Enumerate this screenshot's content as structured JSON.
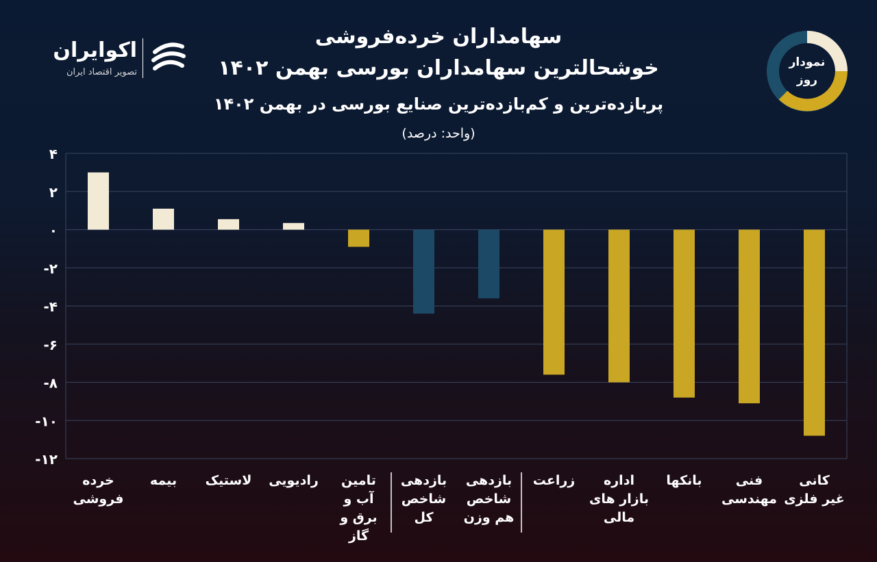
{
  "header": {
    "title_line1": "سهامداران خرده‌فروشی",
    "title_line2": "خوشحالترین سهامداران بورسی بهمن ۱۴۰۲",
    "subtitle": "پربازده‌ترین و کم‌بازده‌ترین صنایع بورسی در بهمن ۱۴۰۲",
    "unit": "(واحد: درصد)"
  },
  "brand": {
    "name": "اکوایران",
    "tagline": "تصویر اقتصاد ایران",
    "logo_icon": "ecoiran-logo-icon"
  },
  "badge": {
    "line1": "نمودار",
    "line2": "روز"
  },
  "colors": {
    "positive": "#f3ead6",
    "index": "#1c4a66",
    "negative": "#c9a623",
    "badge_cream": "#f3ead6",
    "badge_gold": "#d2aa22",
    "badge_teal": "#1e4f6a",
    "grid": "#3a4660"
  },
  "chart_data": {
    "type": "bar",
    "ylabel": "",
    "xlabel": "",
    "ylim": [
      -12,
      4
    ],
    "yticks": [
      4,
      2,
      0,
      -2,
      -4,
      -6,
      -8,
      -10,
      -12
    ],
    "ytick_labels": [
      "۴",
      "۲",
      "۰",
      "-۲",
      "-۴",
      "-۶",
      "-۸",
      "-۱۰",
      "-۱۲"
    ],
    "grid": true,
    "categories": [
      [
        "خرده",
        "فروشی"
      ],
      [
        "بیمه"
      ],
      [
        "لاستیک"
      ],
      [
        "رادیویی"
      ],
      [
        "تامین",
        "آب و",
        "برق و",
        "گاز"
      ],
      [
        "بازدهی",
        "شاخص",
        "کل"
      ],
      [
        "بازدهی",
        "شاخص",
        "هم وزن"
      ],
      [
        "زراعت"
      ],
      [
        "اداره",
        "بازار های",
        "مالی"
      ],
      [
        "بانکها"
      ],
      [
        "فنی",
        "مهندسی"
      ],
      [
        "کانی",
        "غیر فلزی"
      ]
    ],
    "values": [
      3.0,
      1.1,
      0.55,
      0.35,
      -0.9,
      -4.4,
      -3.6,
      -7.6,
      -8.0,
      -8.8,
      -9.1,
      -10.8
    ],
    "bar_groups": [
      "positive",
      "positive",
      "positive",
      "positive",
      "negative",
      "index",
      "index",
      "negative",
      "negative",
      "negative",
      "negative",
      "negative"
    ]
  }
}
